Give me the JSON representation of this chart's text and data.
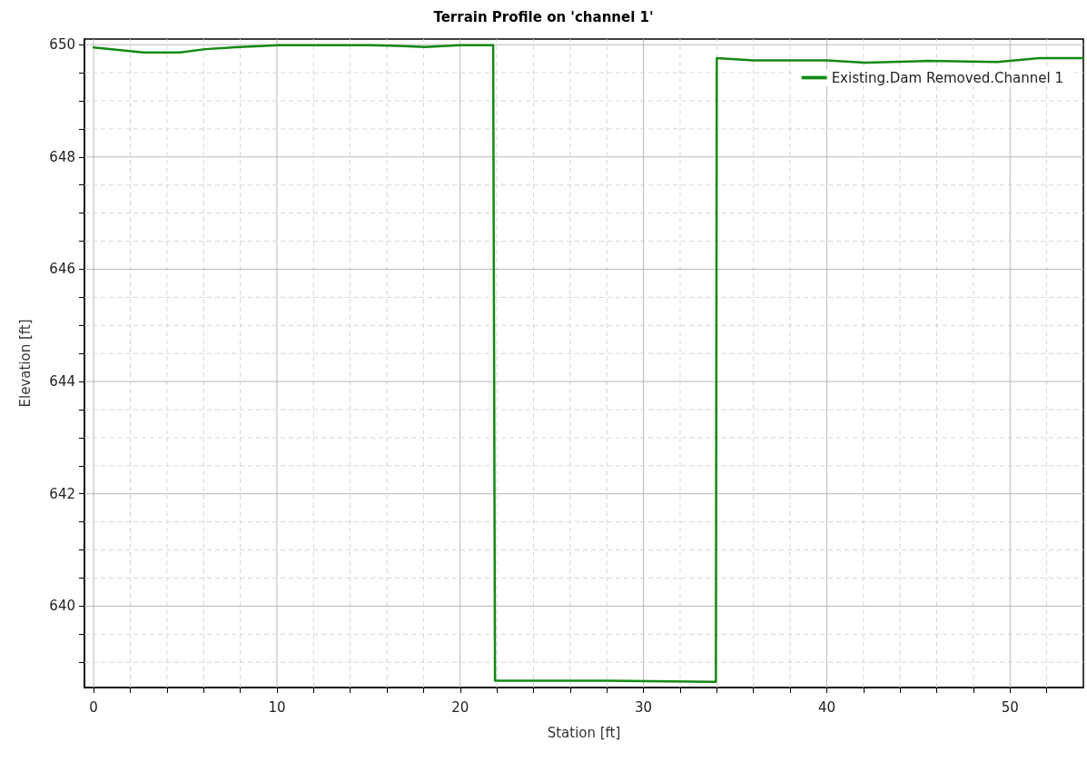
{
  "chart_data": {
    "type": "line",
    "title": "Terrain Profile on 'channel 1'",
    "xlabel": "Station [ft]",
    "ylabel": "Elevation [ft]",
    "series": [
      {
        "name": "Existing.Dam Removed.Channel 1",
        "color": "#138a13",
        "x": [
          0,
          2.7,
          4.7,
          6.1,
          8,
          10.1,
          15,
          16.6,
          18.1,
          20,
          21.8,
          21.9,
          28,
          33.95,
          34,
          36,
          40,
          42.1,
          45.5,
          49.3,
          51.6,
          54
        ],
        "values": [
          649.95,
          649.86,
          649.86,
          649.92,
          649.96,
          649.99,
          649.99,
          649.98,
          649.96,
          649.99,
          649.99,
          638.67,
          638.67,
          638.65,
          649.76,
          649.72,
          649.72,
          649.68,
          649.71,
          649.69,
          649.76,
          649.76
        ]
      }
    ],
    "xlim": [
      -0.5,
      54
    ],
    "ylim": [
      638.55,
      650.1
    ],
    "xticks": [
      0,
      {
        "value": 2,
        "label": null
      },
      {
        "value": 4,
        "label": null
      },
      {
        "value": 6,
        "label": null
      },
      {
        "value": 8,
        "label": null
      },
      10,
      {
        "value": 12,
        "label": null
      },
      {
        "value": 14,
        "label": null
      },
      {
        "value": 16,
        "label": null
      },
      {
        "value": 18,
        "label": null
      },
      20,
      {
        "value": 22,
        "label": null
      },
      {
        "value": 24,
        "label": null
      },
      {
        "value": 26,
        "label": null
      },
      {
        "value": 28,
        "label": null
      },
      30,
      {
        "value": 32,
        "label": null
      },
      {
        "value": 34,
        "label": null
      },
      {
        "value": 36,
        "label": null
      },
      {
        "value": 38,
        "label": null
      },
      40,
      {
        "value": 42,
        "label": null
      },
      {
        "value": 44,
        "label": null
      },
      {
        "value": 46,
        "label": null
      },
      {
        "value": 48,
        "label": null
      },
      50,
      {
        "value": 52,
        "label": null
      }
    ],
    "yticks": [
      {
        "value": 639,
        "label": null
      },
      {
        "value": 639.5,
        "label": null
      },
      640,
      {
        "value": 640.5,
        "label": null
      },
      {
        "value": 641,
        "label": null
      },
      {
        "value": 641.5,
        "label": null
      },
      642,
      {
        "value": 642.5,
        "label": null
      },
      {
        "value": 643,
        "label": null
      },
      {
        "value": 643.5,
        "label": null
      },
      644,
      {
        "value": 644.5,
        "label": null
      },
      {
        "value": 645,
        "label": null
      },
      {
        "value": 645.5,
        "label": null
      },
      646,
      {
        "value": 646.5,
        "label": null
      },
      {
        "value": 647,
        "label": null
      },
      {
        "value": 647.5,
        "label": null
      },
      648,
      {
        "value": 648.5,
        "label": null
      },
      {
        "value": 649,
        "label": null
      },
      {
        "value": 649.5,
        "label": null
      },
      650
    ],
    "grid": true,
    "legend": "top right",
    "marker": "none",
    "line_style": "solid"
  }
}
